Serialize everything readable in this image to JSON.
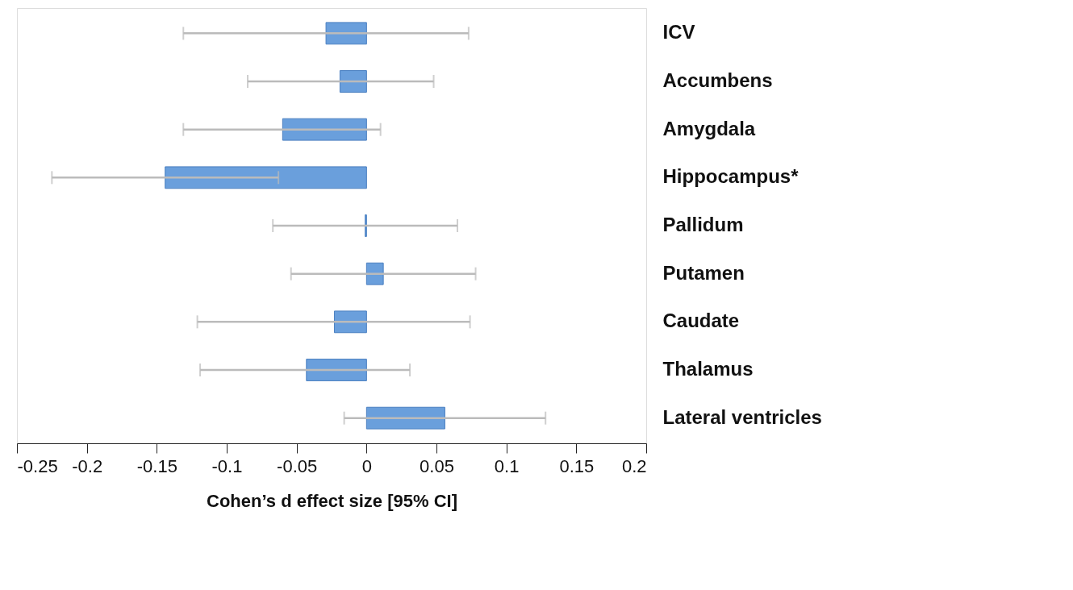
{
  "chart_data": {
    "type": "bar",
    "orientation": "horizontal",
    "xlabel": "Cohen’s d effect size [95% CI]",
    "categories": [
      "ICV",
      "Accumbens",
      "Amygdala",
      "Hippocampus*",
      "Pallidum",
      "Putamen",
      "Caudate",
      "Thalamus",
      "Lateral ventricles"
    ],
    "values": [
      -0.029,
      -0.019,
      -0.06,
      -0.144,
      -0.001,
      0.012,
      -0.023,
      -0.043,
      0.056
    ],
    "errors": [
      [
        -0.131,
        0.073
      ],
      [
        -0.085,
        0.048
      ],
      [
        -0.131,
        0.01
      ],
      [
        -0.225,
        -0.063
      ],
      [
        -0.067,
        0.065
      ],
      [
        -0.054,
        0.078
      ],
      [
        -0.121,
        0.074
      ],
      [
        -0.119,
        0.031
      ],
      [
        -0.016,
        0.128
      ]
    ],
    "color": "#6a9fdc",
    "xlim": [
      -0.25,
      0.2
    ],
    "xticks": [
      -0.25,
      -0.2,
      -0.15,
      -0.1,
      -0.05,
      0,
      0.05,
      0.1,
      0.15,
      0.2
    ],
    "grid": false
  }
}
